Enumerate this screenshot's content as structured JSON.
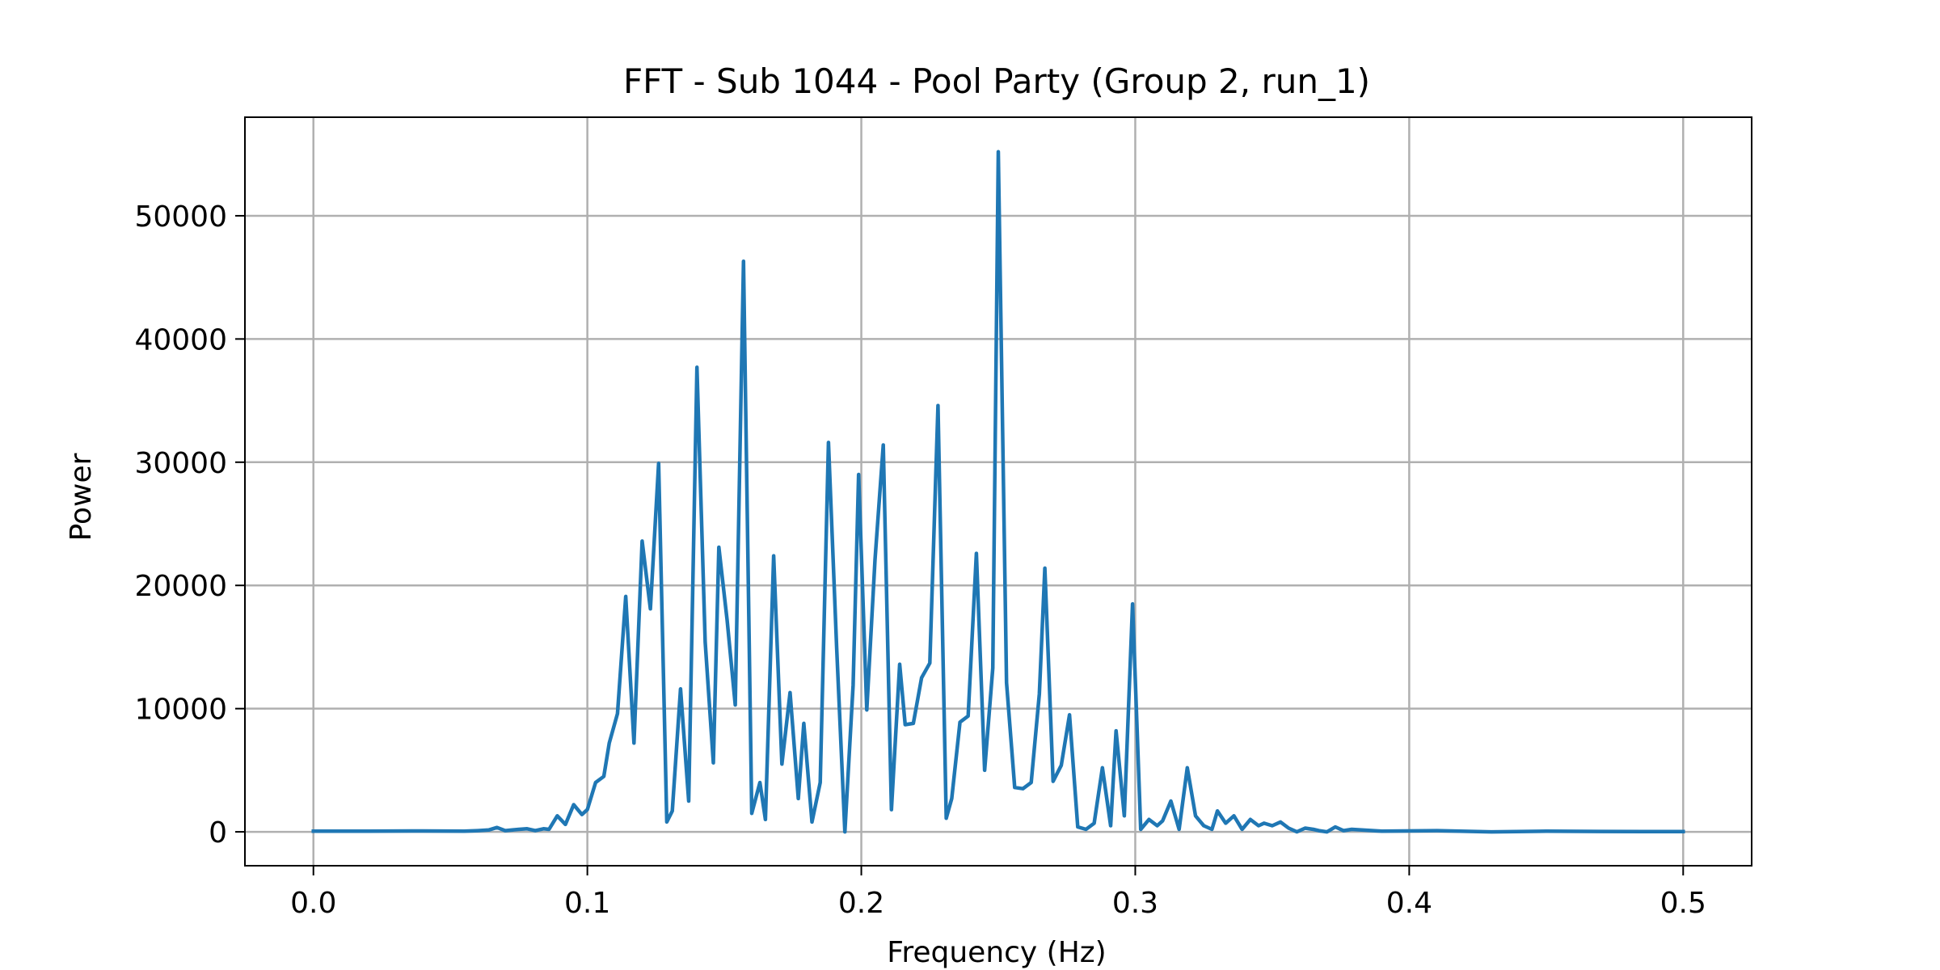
{
  "chart_data": {
    "type": "line",
    "title": "FFT - Sub 1044 - Pool Party (Group 2, run_1)",
    "xlabel": "Frequency (Hz)",
    "ylabel": "Power",
    "xlim": [
      -0.025,
      0.525
    ],
    "ylim": [
      -2750,
      58000
    ],
    "x_ticks": [
      0.0,
      0.1,
      0.2,
      0.3,
      0.4,
      0.5
    ],
    "x_tick_labels": [
      "0.0",
      "0.1",
      "0.2",
      "0.3",
      "0.4",
      "0.5"
    ],
    "y_ticks": [
      0,
      10000,
      20000,
      30000,
      40000,
      50000
    ],
    "y_tick_labels": [
      "0",
      "10000",
      "20000",
      "30000",
      "40000",
      "50000"
    ],
    "grid": true,
    "legend": "none",
    "series": [
      {
        "color": "#1f77b4",
        "points": [
          [
            0.0,
            50
          ],
          [
            0.02,
            60
          ],
          [
            0.04,
            70
          ],
          [
            0.055,
            50
          ],
          [
            0.06,
            100
          ],
          [
            0.064,
            150
          ],
          [
            0.067,
            350
          ],
          [
            0.07,
            100
          ],
          [
            0.075,
            200
          ],
          [
            0.078,
            250
          ],
          [
            0.081,
            100
          ],
          [
            0.084,
            250
          ],
          [
            0.086,
            200
          ],
          [
            0.089,
            1300
          ],
          [
            0.092,
            600
          ],
          [
            0.095,
            2200
          ],
          [
            0.098,
            1400
          ],
          [
            0.1,
            1800
          ],
          [
            0.103,
            4000
          ],
          [
            0.106,
            4500
          ],
          [
            0.108,
            7200
          ],
          [
            0.111,
            9600
          ],
          [
            0.114,
            19100
          ],
          [
            0.117,
            7200
          ],
          [
            0.12,
            23600
          ],
          [
            0.123,
            18100
          ],
          [
            0.126,
            29900
          ],
          [
            0.129,
            800
          ],
          [
            0.131,
            1700
          ],
          [
            0.134,
            11600
          ],
          [
            0.137,
            2500
          ],
          [
            0.14,
            37700
          ],
          [
            0.143,
            15400
          ],
          [
            0.146,
            5600
          ],
          [
            0.148,
            23100
          ],
          [
            0.151,
            17200
          ],
          [
            0.154,
            10300
          ],
          [
            0.157,
            46300
          ],
          [
            0.16,
            1500
          ],
          [
            0.163,
            4000
          ],
          [
            0.165,
            1000
          ],
          [
            0.168,
            22400
          ],
          [
            0.171,
            5500
          ],
          [
            0.174,
            11300
          ],
          [
            0.177,
            2700
          ],
          [
            0.179,
            8800
          ],
          [
            0.182,
            800
          ],
          [
            0.185,
            4000
          ],
          [
            0.188,
            31600
          ],
          [
            0.191,
            15000
          ],
          [
            0.194,
            0
          ],
          [
            0.197,
            11900
          ],
          [
            0.199,
            29000
          ],
          [
            0.202,
            9900
          ],
          [
            0.205,
            22100
          ],
          [
            0.208,
            31400
          ],
          [
            0.211,
            1800
          ],
          [
            0.214,
            13600
          ],
          [
            0.216,
            8700
          ],
          [
            0.219,
            8800
          ],
          [
            0.222,
            12500
          ],
          [
            0.225,
            13700
          ],
          [
            0.228,
            34600
          ],
          [
            0.231,
            1100
          ],
          [
            0.233,
            2700
          ],
          [
            0.236,
            8900
          ],
          [
            0.239,
            9400
          ],
          [
            0.242,
            22600
          ],
          [
            0.245,
            5000
          ],
          [
            0.248,
            13300
          ],
          [
            0.25,
            55200
          ],
          [
            0.253,
            12100
          ],
          [
            0.256,
            3600
          ],
          [
            0.259,
            3500
          ],
          [
            0.262,
            4000
          ],
          [
            0.265,
            11200
          ],
          [
            0.267,
            21400
          ],
          [
            0.27,
            4100
          ],
          [
            0.273,
            5400
          ],
          [
            0.276,
            9500
          ],
          [
            0.279,
            400
          ],
          [
            0.282,
            200
          ],
          [
            0.285,
            700
          ],
          [
            0.288,
            5200
          ],
          [
            0.291,
            500
          ],
          [
            0.293,
            8200
          ],
          [
            0.296,
            1300
          ],
          [
            0.299,
            18500
          ],
          [
            0.302,
            200
          ],
          [
            0.305,
            1000
          ],
          [
            0.308,
            500
          ],
          [
            0.31,
            900
          ],
          [
            0.313,
            2500
          ],
          [
            0.316,
            200
          ],
          [
            0.319,
            5200
          ],
          [
            0.322,
            1300
          ],
          [
            0.325,
            500
          ],
          [
            0.328,
            200
          ],
          [
            0.33,
            1700
          ],
          [
            0.333,
            700
          ],
          [
            0.336,
            1300
          ],
          [
            0.339,
            200
          ],
          [
            0.342,
            1000
          ],
          [
            0.345,
            500
          ],
          [
            0.347,
            700
          ],
          [
            0.35,
            500
          ],
          [
            0.353,
            800
          ],
          [
            0.356,
            300
          ],
          [
            0.359,
            0
          ],
          [
            0.362,
            300
          ],
          [
            0.365,
            200
          ],
          [
            0.367,
            100
          ],
          [
            0.37,
            0
          ],
          [
            0.373,
            400
          ],
          [
            0.376,
            100
          ],
          [
            0.379,
            200
          ],
          [
            0.39,
            50
          ],
          [
            0.41,
            100
          ],
          [
            0.43,
            0
          ],
          [
            0.45,
            50
          ],
          [
            0.47,
            30
          ],
          [
            0.5,
            20
          ]
        ]
      }
    ]
  }
}
